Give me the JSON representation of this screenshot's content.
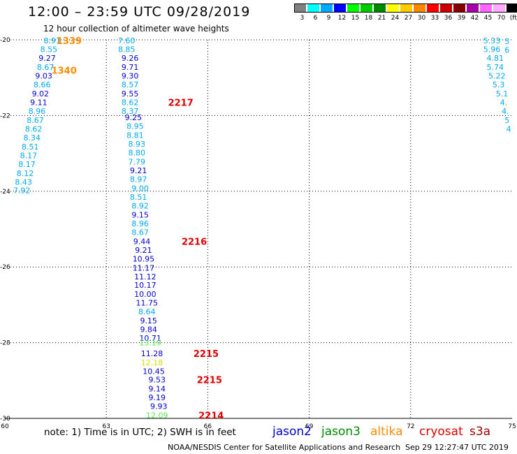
{
  "header": {
    "title": "12:00 – 23:59 UTC 09/28/2019",
    "subtitle": "12 hour collection of altimeter wave heights"
  },
  "colorbar": {
    "colors": [
      "#808080",
      "#00ffff",
      "#00aaff",
      "#0000ff",
      "#00ff00",
      "#00cc00",
      "#008800",
      "#ffff00",
      "#ffcc00",
      "#ff8800",
      "#ff0000",
      "#cc0000",
      "#880000",
      "#aa00aa",
      "#ff66ff",
      "#ffaaff",
      "#000000"
    ],
    "labels": [
      "3",
      "6",
      "9",
      "12",
      "15",
      "18",
      "21",
      "24",
      "27",
      "30",
      "33",
      "36",
      "39",
      "42",
      "45",
      "70",
      "(ft)"
    ]
  },
  "axes": {
    "y_ticks": [
      "-20",
      "-22",
      "-24",
      "-26",
      "-28",
      "-30"
    ],
    "x_ticks": [
      "60",
      "63",
      "66",
      "69",
      "72",
      "75"
    ]
  },
  "map_data": {
    "x_range": [
      60,
      75
    ],
    "y_range": [
      -30,
      -20
    ],
    "color_key": {
      "c": "#00aaee",
      "b": "#0000cc",
      "g": "#55ee55",
      "y": "#dddd00",
      "o": "#ff8c00",
      "r": "#dd0000"
    },
    "tracks": [
      {
        "name": "west-track",
        "points": [
          {
            "x": 61.4,
            "y": -20.02,
            "v": "8.91",
            "c": "c"
          },
          {
            "x": 61.3,
            "y": -20.25,
            "v": "8.55",
            "c": "c"
          },
          {
            "x": 61.25,
            "y": -20.48,
            "v": "9.27",
            "c": "b"
          },
          {
            "x": 61.2,
            "y": -20.72,
            "v": "8.67",
            "c": "c"
          },
          {
            "x": 61.15,
            "y": -20.95,
            "v": "9.03",
            "c": "b"
          },
          {
            "x": 61.1,
            "y": -21.18,
            "v": "8.66",
            "c": "c"
          },
          {
            "x": 61.05,
            "y": -21.42,
            "v": "9.02",
            "c": "b"
          },
          {
            "x": 61.0,
            "y": -21.65,
            "v": "9.11",
            "c": "b"
          },
          {
            "x": 60.95,
            "y": -21.88,
            "v": "8.96",
            "c": "c"
          },
          {
            "x": 60.9,
            "y": -22.12,
            "v": "8.67",
            "c": "c"
          },
          {
            "x": 60.85,
            "y": -22.35,
            "v": "8.62",
            "c": "c"
          },
          {
            "x": 60.8,
            "y": -22.58,
            "v": "8.34",
            "c": "c"
          },
          {
            "x": 60.75,
            "y": -22.82,
            "v": "8.51",
            "c": "c"
          },
          {
            "x": 60.7,
            "y": -23.05,
            "v": "8.17",
            "c": "c"
          },
          {
            "x": 60.65,
            "y": -23.28,
            "v": "8.17",
            "c": "c"
          },
          {
            "x": 60.6,
            "y": -23.52,
            "v": "8.12",
            "c": "c"
          },
          {
            "x": 60.55,
            "y": -23.75,
            "v": "8.43",
            "c": "c"
          },
          {
            "x": 60.5,
            "y": -23.98,
            "v": "7.92",
            "c": "c"
          }
        ]
      },
      {
        "name": "central-track",
        "points": [
          {
            "x": 63.6,
            "y": -20.02,
            "v": "7.60",
            "c": "c"
          },
          {
            "x": 63.6,
            "y": -20.25,
            "v": "8.85",
            "c": "c"
          },
          {
            "x": 63.7,
            "y": -20.48,
            "v": "9.26",
            "c": "b"
          },
          {
            "x": 63.7,
            "y": -20.72,
            "v": "9.71",
            "c": "b"
          },
          {
            "x": 63.7,
            "y": -20.95,
            "v": "9.30",
            "c": "b"
          },
          {
            "x": 63.7,
            "y": -21.18,
            "v": "8.57",
            "c": "c"
          },
          {
            "x": 63.7,
            "y": -21.42,
            "v": "9.55",
            "c": "b"
          },
          {
            "x": 63.7,
            "y": -21.65,
            "v": "8.62",
            "c": "c"
          },
          {
            "x": 63.7,
            "y": -21.88,
            "v": "8.37",
            "c": "c"
          },
          {
            "x": 63.8,
            "y": -22.05,
            "v": "9.25",
            "c": "b"
          },
          {
            "x": 63.85,
            "y": -22.28,
            "v": "8.95",
            "c": "c"
          },
          {
            "x": 63.85,
            "y": -22.52,
            "v": "8.81",
            "c": "c"
          },
          {
            "x": 63.9,
            "y": -22.75,
            "v": "8.93",
            "c": "c"
          },
          {
            "x": 63.9,
            "y": -22.98,
            "v": "8.80",
            "c": "c"
          },
          {
            "x": 63.9,
            "y": -23.22,
            "v": "7.79",
            "c": "c"
          },
          {
            "x": 63.95,
            "y": -23.45,
            "v": "9.21",
            "c": "b"
          },
          {
            "x": 63.95,
            "y": -23.68,
            "v": "8.97",
            "c": "c"
          },
          {
            "x": 64.0,
            "y": -23.92,
            "v": "9.00",
            "c": "c"
          },
          {
            "x": 63.95,
            "y": -24.15,
            "v": "8.51",
            "c": "c"
          },
          {
            "x": 64.0,
            "y": -24.38,
            "v": "8.92",
            "c": "c"
          },
          {
            "x": 64.0,
            "y": -24.62,
            "v": "9.15",
            "c": "b"
          },
          {
            "x": 64.0,
            "y": -24.85,
            "v": "8.96",
            "c": "c"
          },
          {
            "x": 64.0,
            "y": -25.08,
            "v": "8.67",
            "c": "c"
          },
          {
            "x": 64.05,
            "y": -25.32,
            "v": "9.44",
            "c": "b"
          },
          {
            "x": 64.1,
            "y": -25.55,
            "v": "9.21",
            "c": "b"
          },
          {
            "x": 64.1,
            "y": -25.78,
            "v": "10.95",
            "c": "b"
          },
          {
            "x": 64.1,
            "y": -26.02,
            "v": "11.17",
            "c": "b"
          },
          {
            "x": 64.15,
            "y": -26.25,
            "v": "11.12",
            "c": "b"
          },
          {
            "x": 64.15,
            "y": -26.48,
            "v": "10.17",
            "c": "b"
          },
          {
            "x": 64.15,
            "y": -26.72,
            "v": "10.00",
            "c": "b"
          },
          {
            "x": 64.2,
            "y": -26.95,
            "v": "11.75",
            "c": "b"
          },
          {
            "x": 64.2,
            "y": -27.18,
            "v": "8.64",
            "c": "c"
          },
          {
            "x": 64.25,
            "y": -27.42,
            "v": "9.15",
            "c": "b"
          },
          {
            "x": 64.25,
            "y": -27.65,
            "v": "9.84",
            "c": "b"
          },
          {
            "x": 64.3,
            "y": -27.88,
            "v": "10.71",
            "c": "b"
          },
          {
            "x": 64.3,
            "y": -28.0,
            "v": "13.19",
            "c": "g"
          },
          {
            "x": 64.35,
            "y": -28.28,
            "v": "11.28",
            "c": "b"
          },
          {
            "x": 64.35,
            "y": -28.52,
            "v": "12.18",
            "c": "y"
          },
          {
            "x": 64.4,
            "y": -28.75,
            "v": "10.45",
            "c": "b"
          },
          {
            "x": 64.5,
            "y": -28.98,
            "v": "9.53",
            "c": "b"
          },
          {
            "x": 64.5,
            "y": -29.22,
            "v": "9.14",
            "c": "b"
          },
          {
            "x": 64.5,
            "y": -29.45,
            "v": "9.19",
            "c": "b"
          },
          {
            "x": 64.55,
            "y": -29.68,
            "v": "9.93",
            "c": "b"
          },
          {
            "x": 64.5,
            "y": -29.92,
            "v": "12.09",
            "c": "g"
          }
        ]
      },
      {
        "name": "east-track",
        "points": [
          {
            "x": 74.4,
            "y": -20.02,
            "v": "5.33",
            "c": "c"
          },
          {
            "x": 74.4,
            "y": -20.25,
            "v": "5.96",
            "c": "c"
          },
          {
            "x": 74.5,
            "y": -20.48,
            "v": "4.81",
            "c": "c"
          },
          {
            "x": 74.5,
            "y": -20.72,
            "v": "5.74",
            "c": "c"
          },
          {
            "x": 74.55,
            "y": -20.95,
            "v": "5.22",
            "c": "c"
          },
          {
            "x": 74.6,
            "y": -21.18,
            "v": "5.3",
            "c": "c"
          },
          {
            "x": 74.7,
            "y": -21.42,
            "v": "5.1",
            "c": "c"
          },
          {
            "x": 74.75,
            "y": -21.65,
            "v": "4.",
            "c": "c"
          },
          {
            "x": 74.8,
            "y": -21.88,
            "v": "4.",
            "c": "c"
          },
          {
            "x": 74.85,
            "y": -22.12,
            "v": "5",
            "c": "c"
          },
          {
            "x": 74.9,
            "y": -22.35,
            "v": "4",
            "c": "c"
          }
        ]
      }
    ],
    "pass_labels": [
      {
        "x": 61.9,
        "y": -20.02,
        "v": "1339",
        "c": "o"
      },
      {
        "x": 61.75,
        "y": -20.8,
        "v": "1340",
        "c": "o"
      },
      {
        "x": 65.2,
        "y": -21.65,
        "v": "2217",
        "c": "r"
      },
      {
        "x": 65.6,
        "y": -25.32,
        "v": "2216",
        "c": "r"
      },
      {
        "x": 65.95,
        "y": -28.28,
        "v": "2215",
        "c": "r"
      },
      {
        "x": 66.05,
        "y": -28.98,
        "v": "2215",
        "c": "r"
      },
      {
        "x": 66.1,
        "y": -29.92,
        "v": "2214",
        "c": "r"
      },
      {
        "x": 74.85,
        "y": -20.02,
        "v": "5",
        "c": "c"
      },
      {
        "x": 74.85,
        "y": -20.25,
        "v": "6",
        "c": "c"
      }
    ]
  },
  "footer": {
    "note": "note: 1) Time is in UTC; 2) SWH is in feet",
    "legend": [
      {
        "label": "jason2",
        "color": "#0000cc"
      },
      {
        "label": "jason3",
        "color": "#008800"
      },
      {
        "label": "altika",
        "color": "#ff8c00"
      },
      {
        "label": "cryosat",
        "color": "#dd0000"
      },
      {
        "label": "s3a",
        "color": "#990000"
      }
    ],
    "credit": "NOAA/NESDIS Center for Satellite Applications and Research",
    "timestamp": "Sep 29 12:27:47 UTC 2019"
  }
}
